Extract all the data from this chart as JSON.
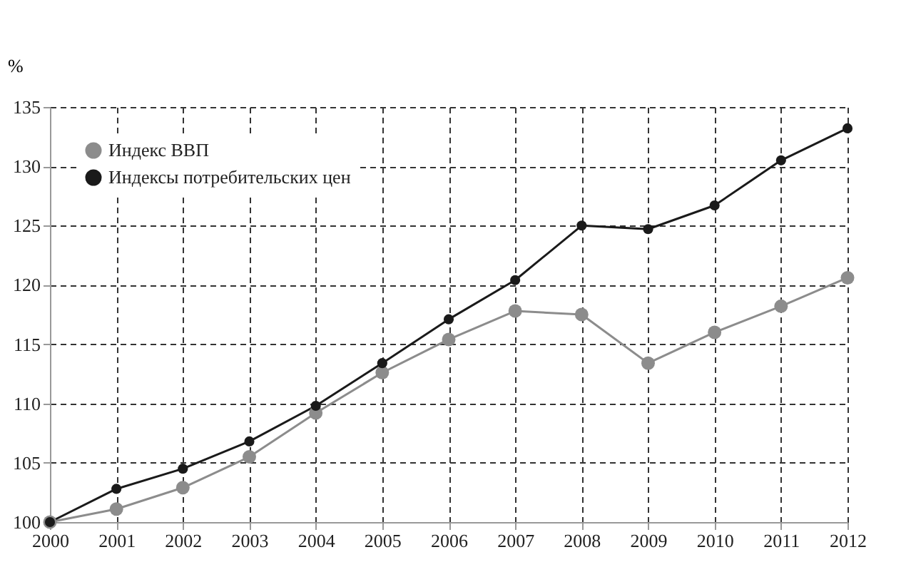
{
  "chart_data": {
    "type": "line",
    "ylabel": "%",
    "x": [
      2000,
      2001,
      2002,
      2003,
      2004,
      2005,
      2006,
      2007,
      2008,
      2009,
      2010,
      2011,
      2012
    ],
    "series": [
      {
        "name": "Индекс ВВП",
        "color": "#8c8c8c",
        "values": [
          100,
          101.1,
          102.9,
          105.5,
          109.2,
          112.6,
          115.4,
          117.8,
          117.5,
          113.4,
          116.0,
          118.2,
          120.6
        ]
      },
      {
        "name": "Индексы потребительских цен",
        "color": "#1a1a1a",
        "values": [
          100,
          102.8,
          104.5,
          106.8,
          109.8,
          113.4,
          117.1,
          120.4,
          125.0,
          124.7,
          126.7,
          130.5,
          133.2
        ]
      }
    ],
    "xlim": [
      2000,
      2012
    ],
    "xticks": [
      2000,
      2001,
      2002,
      2003,
      2004,
      2005,
      2006,
      2007,
      2008,
      2009,
      2010,
      2011,
      2012
    ],
    "ylim": [
      100,
      135
    ],
    "yticks": [
      100,
      105,
      110,
      115,
      120,
      125,
      130,
      135
    ],
    "grid": true,
    "legend": "top left",
    "marker": "circle",
    "line_style": "solid"
  }
}
